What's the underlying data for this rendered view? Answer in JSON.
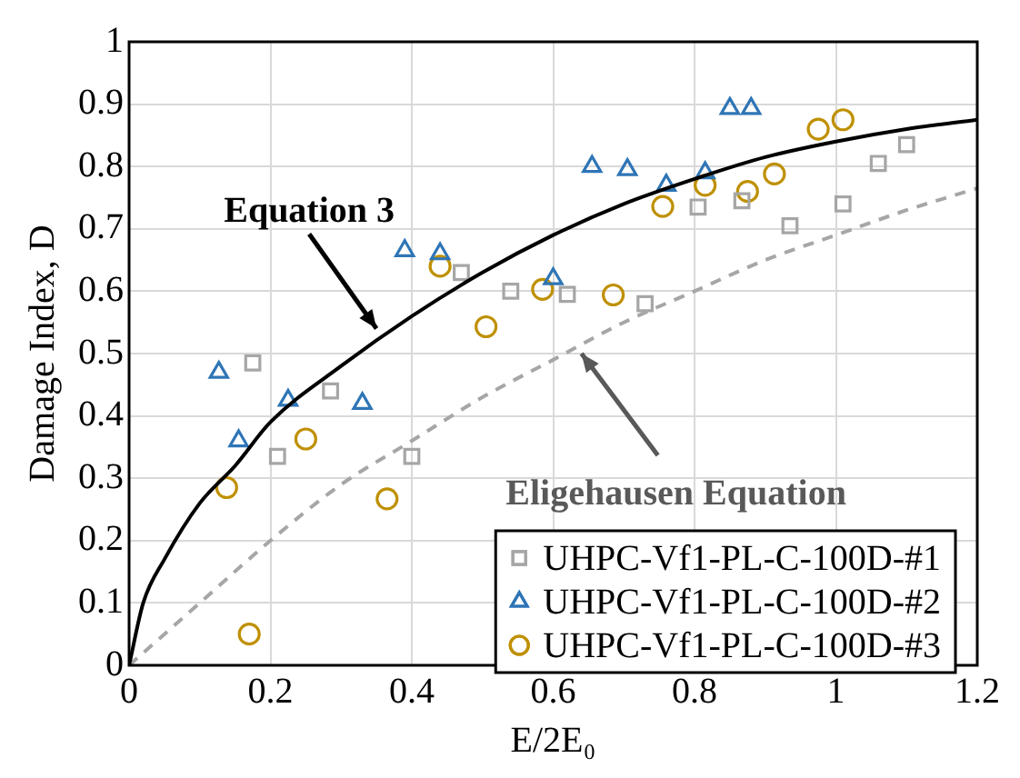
{
  "chart_data": {
    "type": "scatter",
    "xlabel": "E/2E₀",
    "ylabel": "Damage Index, D",
    "xlim": [
      0,
      1.2
    ],
    "xticks": [
      0,
      0.2,
      0.4,
      0.6,
      0.8,
      1,
      1.2
    ],
    "ylim": [
      0,
      1
    ],
    "yticks": [
      0,
      0.1,
      0.2,
      0.3,
      0.4,
      0.5,
      0.6,
      0.7,
      0.8,
      0.9,
      1
    ],
    "grid": true,
    "legend": "bottom right",
    "series": [
      {
        "type": "line",
        "color": "#000000",
        "line_style": "solid",
        "marker": "none",
        "x": [
          0,
          0.02,
          0.05,
          0.1,
          0.15,
          0.2,
          0.3,
          0.4,
          0.5,
          0.6,
          0.7,
          0.8,
          0.9,
          1,
          1.1,
          1.2
        ],
        "values": [
          0,
          0.1,
          0.17,
          0.26,
          0.32,
          0.39,
          0.48,
          0.56,
          0.63,
          0.69,
          0.74,
          0.78,
          0.815,
          0.84,
          0.86,
          0.875
        ]
      },
      {
        "type": "line",
        "color": "#a6a6a6",
        "line_style": "dashed",
        "marker": "none",
        "x": [
          0,
          0.1,
          0.2,
          0.3,
          0.4,
          0.5,
          0.6,
          0.7,
          0.8,
          0.9,
          1,
          1.1,
          1.2
        ],
        "values": [
          0,
          0.1,
          0.2,
          0.29,
          0.36,
          0.43,
          0.49,
          0.55,
          0.6,
          0.65,
          0.69,
          0.73,
          0.765
        ]
      },
      {
        "name": "UHPC-Vf1-PL-C-100D-#1",
        "color": "#a6a6a6",
        "marker": "square",
        "x": [
          0.175,
          0.21,
          0.285,
          0.4,
          0.47,
          0.54,
          0.62,
          0.73,
          0.805,
          0.867,
          0.935,
          1.01,
          1.06,
          1.1
        ],
        "values": [
          0.485,
          0.335,
          0.44,
          0.335,
          0.63,
          0.6,
          0.595,
          0.58,
          0.735,
          0.745,
          0.705,
          0.74,
          0.805,
          0.835
        ]
      },
      {
        "name": "UHPC-Vf1-PL-C-100D-#2",
        "color": "#2e75b6",
        "marker": "triangle",
        "x": [
          0.127,
          0.155,
          0.225,
          0.33,
          0.39,
          0.44,
          0.6,
          0.655,
          0.705,
          0.76,
          0.815,
          0.85,
          0.88
        ],
        "values": [
          0.47,
          0.36,
          0.425,
          0.42,
          0.665,
          0.66,
          0.62,
          0.8,
          0.795,
          0.77,
          0.79,
          0.893,
          0.893
        ]
      },
      {
        "name": "UHPC-Vf1-PL-C-100D-#3",
        "color": "#bf9000",
        "marker": "circle",
        "x": [
          0.138,
          0.17,
          0.25,
          0.365,
          0.44,
          0.505,
          0.585,
          0.685,
          0.755,
          0.815,
          0.875,
          0.913,
          0.975,
          1.01
        ],
        "values": [
          0.285,
          0.05,
          0.363,
          0.267,
          0.64,
          0.543,
          0.603,
          0.594,
          0.736,
          0.77,
          0.76,
          0.788,
          0.86,
          0.875
        ]
      }
    ],
    "annotations": [
      {
        "text": "Equation 3",
        "x": 0.35,
        "y": 0.54
      },
      {
        "text": "Eligehausen Equation",
        "x": 0.64,
        "y": 0.5
      }
    ]
  }
}
